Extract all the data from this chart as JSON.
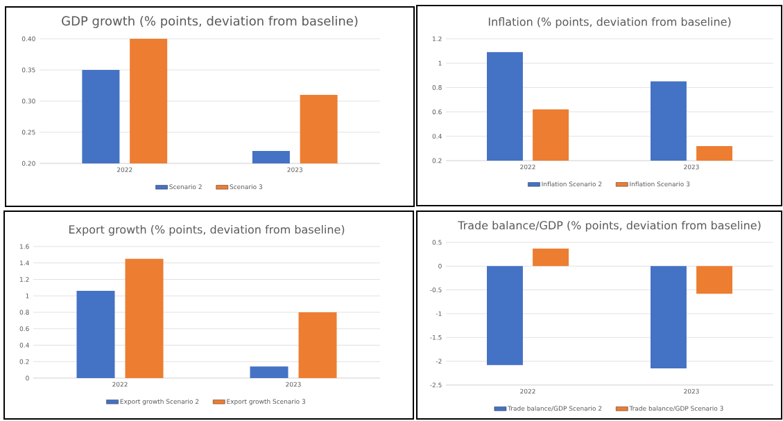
{
  "chart_data": [
    {
      "type": "bar",
      "title": "GDP growth (% points, deviation from baseline)",
      "categories": [
        "2022",
        "2023"
      ],
      "series": [
        {
          "name": "Scenario 2",
          "color": "#4472c4",
          "values": [
            0.35,
            0.22
          ]
        },
        {
          "name": "Scenario 3",
          "color": "#ed7d31",
          "values": [
            0.4,
            0.31
          ]
        }
      ],
      "ylim": [
        0.2,
        0.4
      ],
      "yticks": [
        {
          "value": 0.2,
          "label": "0.20"
        },
        {
          "value": 0.25,
          "label": "0.25"
        },
        {
          "value": 0.3,
          "label": "0.30"
        },
        {
          "value": 0.35,
          "label": "0.35"
        },
        {
          "value": 0.4,
          "label": "0.40"
        }
      ],
      "grid": "y",
      "legend": "bottom"
    },
    {
      "type": "bar",
      "title": "Inflation (% points, deviation from baseline)",
      "categories": [
        "2022",
        "2023"
      ],
      "series": [
        {
          "name": "Inflation Scenario 2",
          "color": "#4472c4",
          "values": [
            1.09,
            0.85
          ]
        },
        {
          "name": "Inflation Scenario 3",
          "color": "#ed7d31",
          "values": [
            0.62,
            0.32
          ]
        }
      ],
      "ylim": [
        0.2,
        1.2
      ],
      "yticks": [
        0.2,
        0.4,
        0.6,
        0.8,
        1,
        1.2
      ],
      "grid": "y",
      "legend": "bottom"
    },
    {
      "type": "bar",
      "title": "Export growth (% points, deviation from baseline)",
      "categories": [
        "2022",
        "2023"
      ],
      "series": [
        {
          "name": "Export growth Scenario 2",
          "color": "#4472c4",
          "values": [
            1.06,
            0.14
          ]
        },
        {
          "name": "Export growth Scenario 3",
          "color": "#ed7d31",
          "values": [
            1.45,
            0.8
          ]
        }
      ],
      "ylim": [
        0,
        1.6
      ],
      "yticks": [
        0,
        0.2,
        0.4,
        0.6,
        0.8,
        1,
        1.2,
        1.4,
        1.6
      ],
      "grid": "y",
      "legend": "bottom"
    },
    {
      "type": "bar",
      "title": "Trade balance/GDP (% points, deviation from baseline)",
      "categories": [
        "2022",
        "2023"
      ],
      "series": [
        {
          "name": "Trade balance/GDP Scenario 2",
          "color": "#4472c4",
          "values": [
            -2.08,
            -2.15
          ]
        },
        {
          "name": "Trade balance/GDP Scenario 3",
          "color": "#ed7d31",
          "values": [
            0.37,
            -0.58
          ]
        }
      ],
      "ylim": [
        -2.5,
        0.5
      ],
      "yticks": [
        -2.5,
        -2,
        -1.5,
        -1,
        -0.5,
        0,
        0.5
      ],
      "grid": "y",
      "legend": "bottom"
    }
  ]
}
